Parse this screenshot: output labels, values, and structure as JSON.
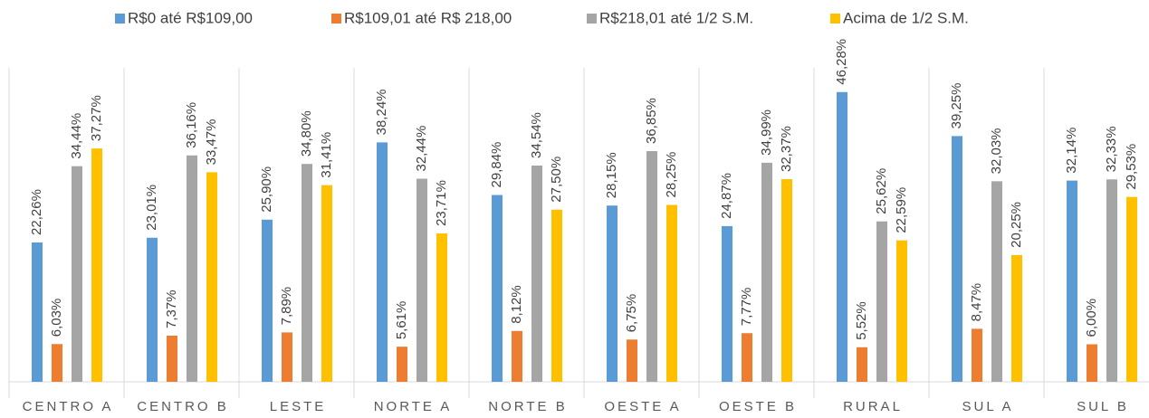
{
  "chart_data": {
    "type": "bar",
    "categories": [
      "CENTRO A",
      "CENTRO B",
      "LESTE",
      "NORTE A",
      "NORTE B",
      "OESTE A",
      "OESTE B",
      "RURAL",
      "SUL A",
      "SUL B"
    ],
    "series": [
      {
        "name": "R$0 até R$109,00",
        "color": "#5b9bd5",
        "values": [
          22.26,
          23.01,
          25.9,
          38.24,
          29.84,
          28.15,
          24.87,
          46.28,
          39.25,
          32.14
        ],
        "value_labels": [
          "22,26%",
          "23,01%",
          "25,90%",
          "38,24%",
          "29,84%",
          "28,15%",
          "24,87%",
          "46,28%",
          "39,25%",
          "32,14%"
        ]
      },
      {
        "name": "R$109,01 até R$ 218,00",
        "color": "#ed7d31",
        "values": [
          6.03,
          7.37,
          7.89,
          5.61,
          8.12,
          6.75,
          7.77,
          5.52,
          8.47,
          6.0
        ],
        "value_labels": [
          "6,03%",
          "7,37%",
          "7,89%",
          "5,61%",
          "8,12%",
          "6,75%",
          "7,77%",
          "5,52%",
          "8,47%",
          "6,00%"
        ]
      },
      {
        "name": "R$218,01 até 1/2 S.M.",
        "color": "#a5a5a5",
        "values": [
          34.44,
          36.16,
          34.8,
          32.44,
          34.54,
          36.85,
          34.99,
          25.62,
          32.03,
          32.33
        ],
        "value_labels": [
          "34,44%",
          "36,16%",
          "34,80%",
          "32,44%",
          "34,54%",
          "36,85%",
          "34,99%",
          "25,62%",
          "32,03%",
          "32,33%"
        ]
      },
      {
        "name": "Acima de 1/2 S.M.",
        "color": "#ffc000",
        "values": [
          37.27,
          33.47,
          31.41,
          23.71,
          27.5,
          28.25,
          32.37,
          22.59,
          20.25,
          29.53
        ],
        "value_labels": [
          "37,27%",
          "33,47%",
          "31,41%",
          "23,71%",
          "27,50%",
          "28,25%",
          "32,37%",
          "22,59%",
          "20,25%",
          "29,53%"
        ]
      }
    ],
    "legend": "top"
  }
}
